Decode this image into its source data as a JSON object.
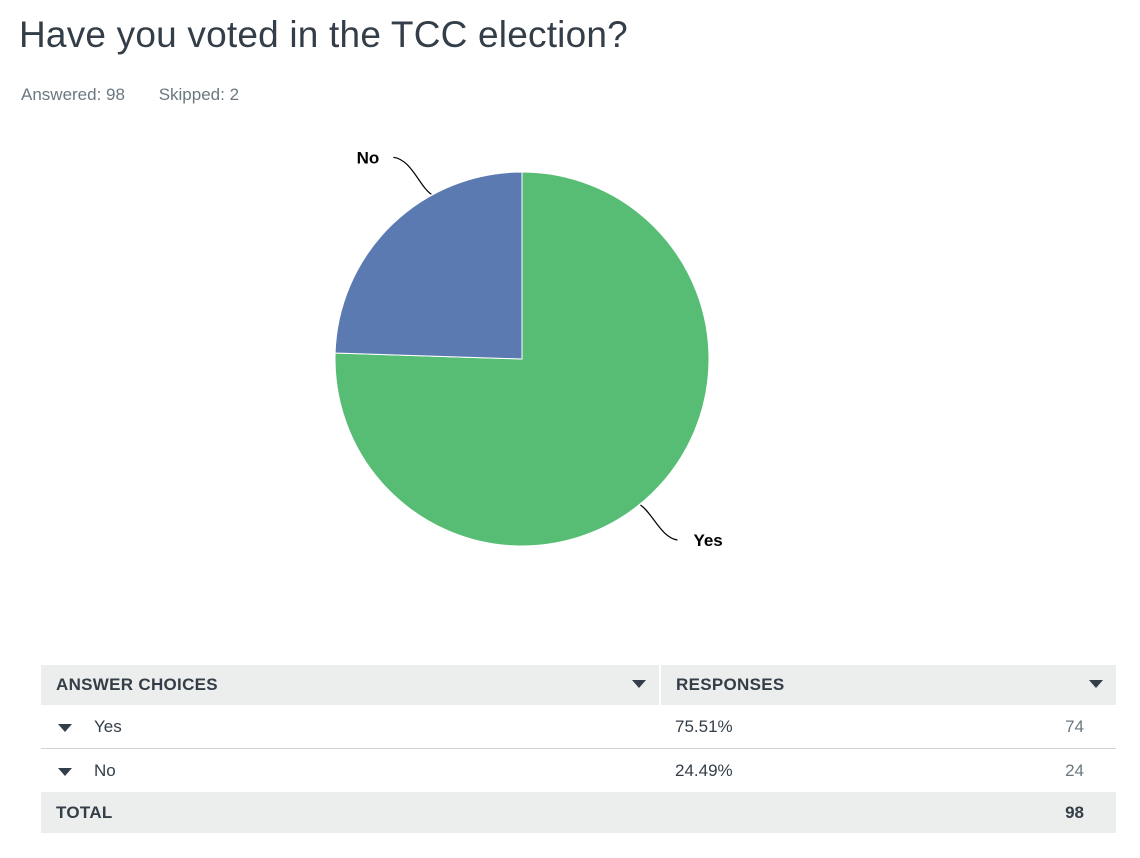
{
  "question": {
    "title": "Have you voted in the TCC election?",
    "answered_label": "Answered: 98",
    "skipped_label": "Skipped: 2"
  },
  "chart_data": {
    "type": "pie",
    "title": "",
    "slices": [
      {
        "label": "Yes",
        "value": 75.51,
        "color": "#57bd74"
      },
      {
        "label": "No",
        "value": 24.49,
        "color": "#5a7ab1"
      }
    ],
    "start_angle_deg": 0,
    "direction": "clockwise",
    "legend": "none",
    "labels": "outside-with-leader-lines"
  },
  "table": {
    "headers": {
      "answer_choices": "ANSWER CHOICES",
      "responses": "RESPONSES"
    },
    "rows": [
      {
        "choice": "Yes",
        "percent": "75.51%",
        "count": "74"
      },
      {
        "choice": "No",
        "percent": "24.49%",
        "count": "24"
      }
    ],
    "total": {
      "label": "TOTAL",
      "value": "98"
    }
  },
  "icons": {
    "header_sort": "chevron-down-icon",
    "row_expand": "caret-down-icon"
  }
}
